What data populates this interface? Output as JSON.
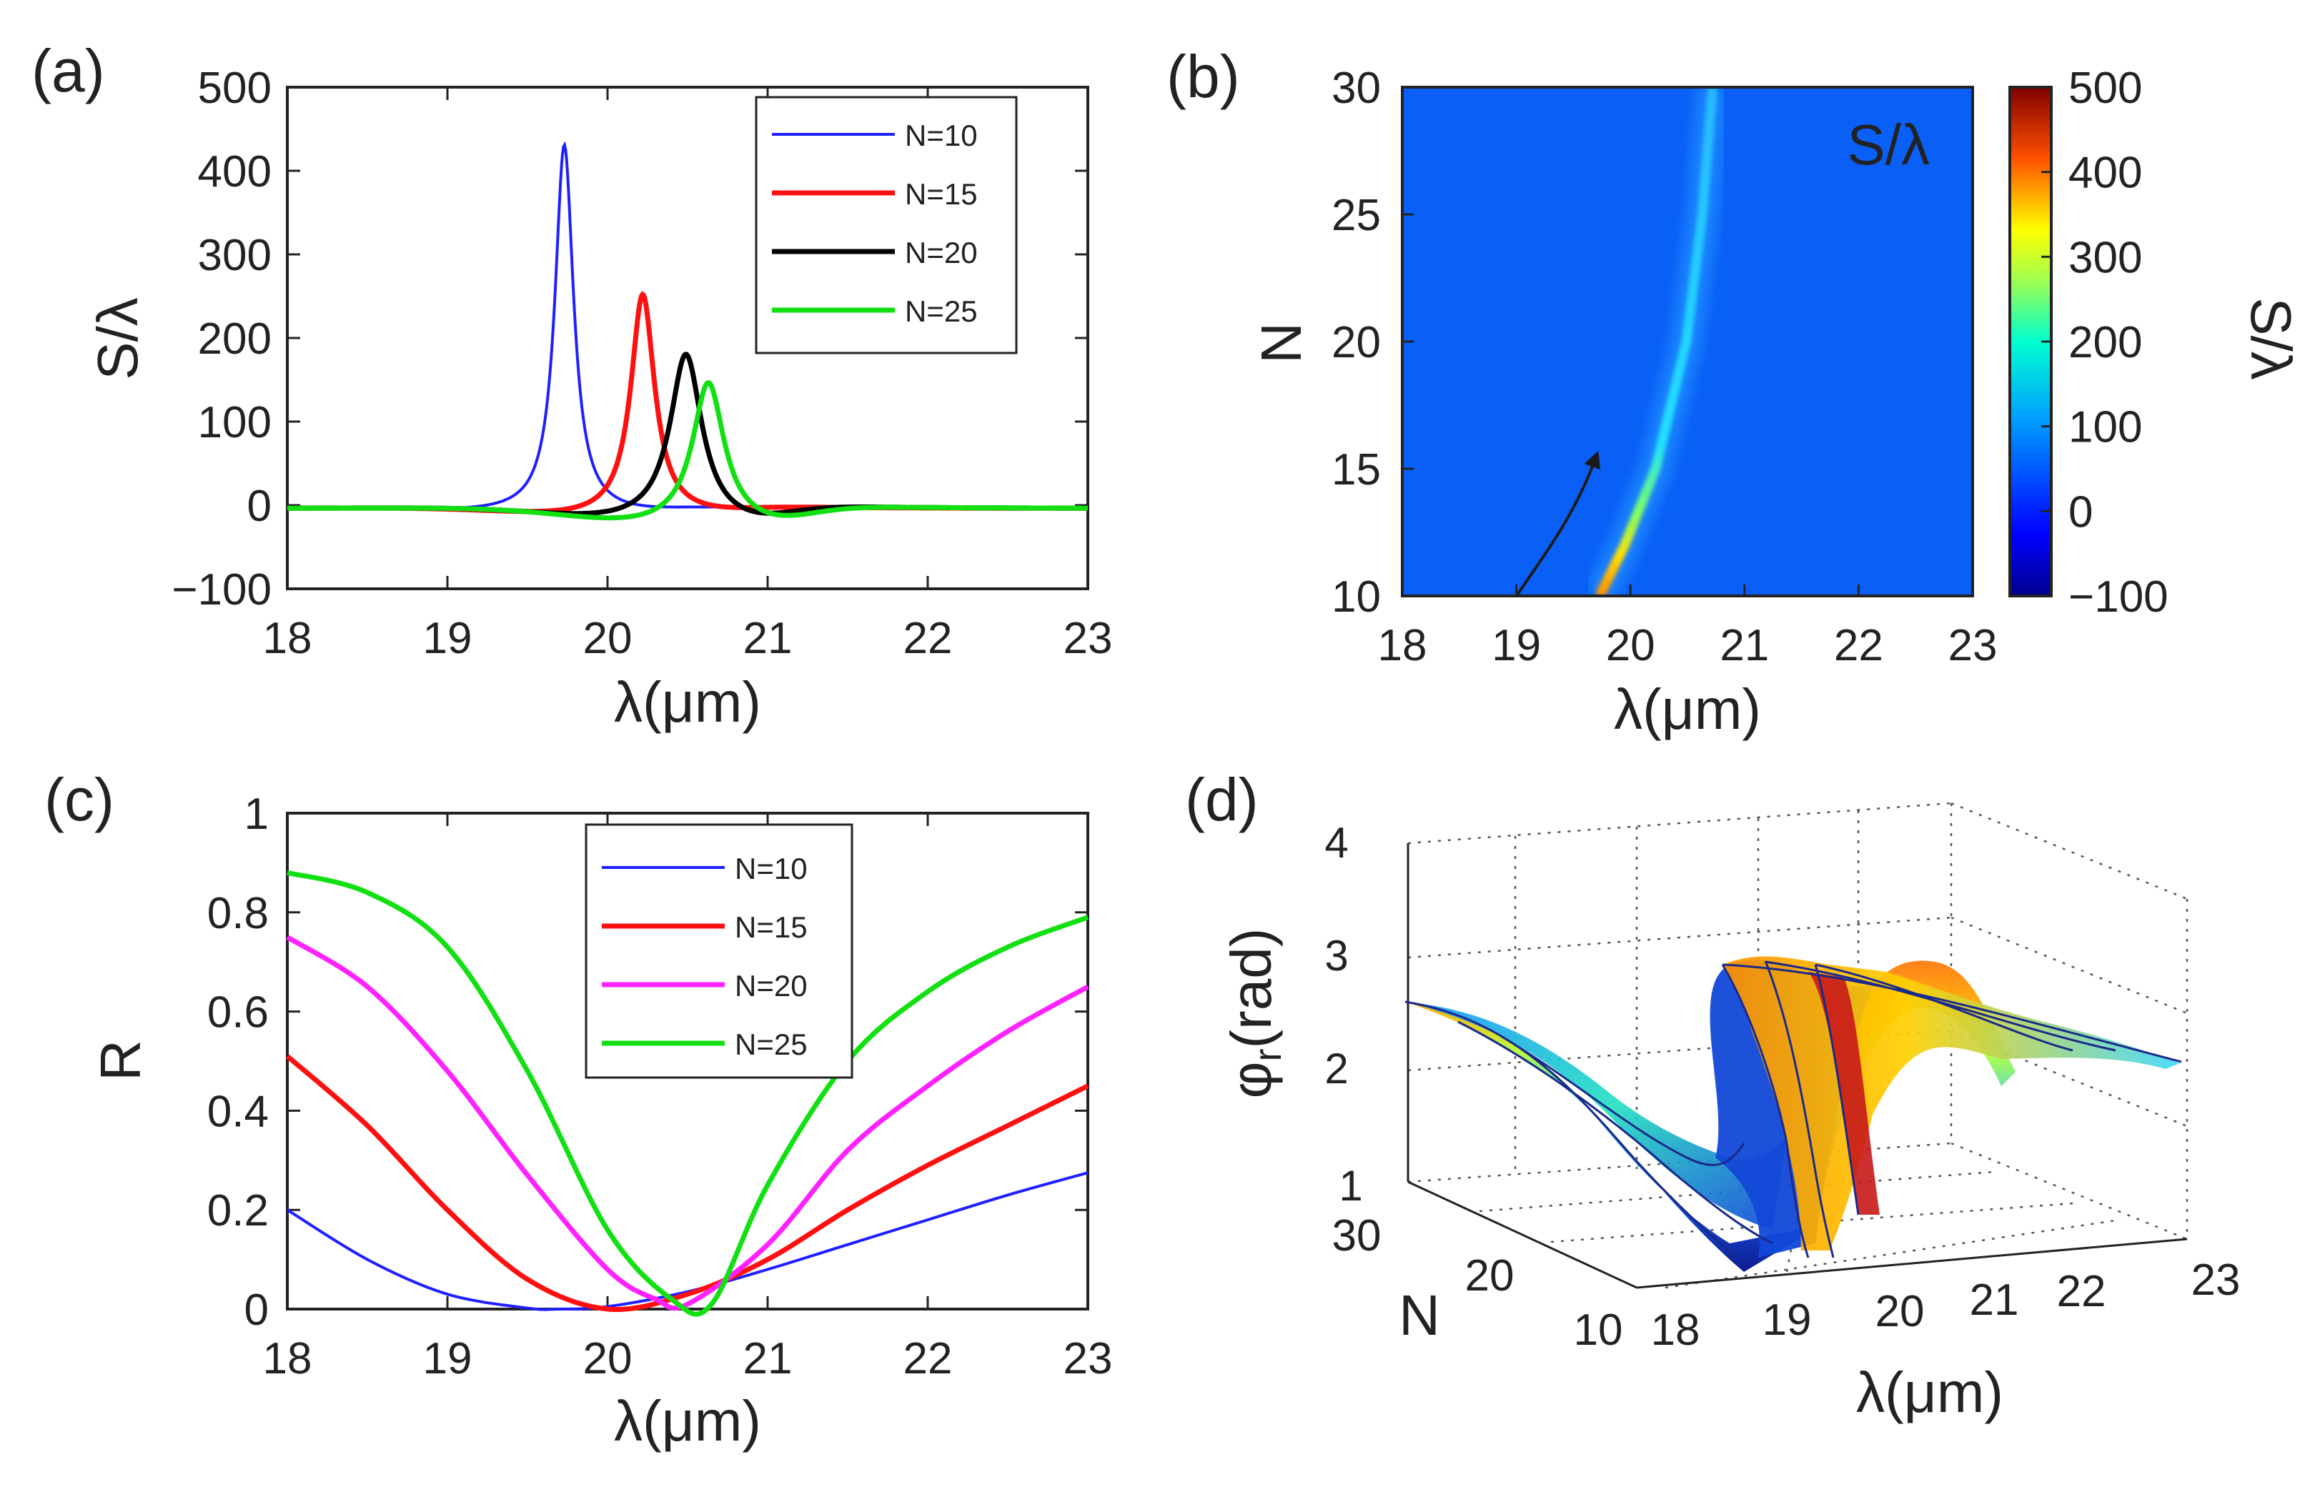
{
  "chart_data": [
    {
      "id": "a",
      "type": "line",
      "panel_label": "(a)",
      "xlabel": "λ(μm)",
      "ylabel": "S/λ",
      "xlim": [
        18,
        23
      ],
      "ylim": [
        -100,
        500
      ],
      "xticks": [
        "18",
        "19",
        "20",
        "21",
        "22",
        "23"
      ],
      "yticks": [
        "−100",
        "0",
        "100",
        "200",
        "300",
        "400",
        "500"
      ],
      "legend_position": "top-right",
      "series": [
        {
          "name": "N=10",
          "color": "#1f1fff",
          "peak_x": 19.73,
          "peak_y": 440,
          "width": 0.07
        },
        {
          "name": "N=15",
          "color": "#ff1010",
          "peak_x": 20.22,
          "peak_y": 265,
          "width": 0.09
        },
        {
          "name": "N=20",
          "color": "#000000",
          "peak_x": 20.49,
          "peak_y": 200,
          "width": 0.12
        },
        {
          "name": "N=25",
          "color": "#12e012",
          "peak_x": 20.63,
          "peak_y": 170,
          "width": 0.12
        }
      ]
    },
    {
      "id": "b",
      "type": "heatmap",
      "panel_label": "(b)",
      "xlabel": "λ(μm)",
      "ylabel": "N",
      "annotation": "S/λ",
      "colorbar_label": "S/λ",
      "xlim": [
        18,
        23
      ],
      "ylim": [
        10,
        30
      ],
      "clim": [
        -100,
        500
      ],
      "xticks": [
        "18",
        "19",
        "20",
        "21",
        "22",
        "23"
      ],
      "yticks": [
        "10",
        "15",
        "20",
        "25",
        "30"
      ],
      "cticks": [
        "−100",
        "0",
        "100",
        "200",
        "300",
        "400",
        "500"
      ],
      "ridge": [
        {
          "N": 10,
          "x": 19.73,
          "value": 440
        },
        {
          "N": 12,
          "x": 19.95,
          "value": 330
        },
        {
          "N": 15,
          "x": 20.22,
          "value": 265
        },
        {
          "N": 20,
          "x": 20.49,
          "value": 200
        },
        {
          "N": 25,
          "x": 20.63,
          "value": 170
        },
        {
          "N": 30,
          "x": 20.72,
          "value": 150
        }
      ]
    },
    {
      "id": "c",
      "type": "line",
      "panel_label": "(c)",
      "xlabel": "λ(μm)",
      "ylabel": "R",
      "xlim": [
        18,
        23
      ],
      "ylim": [
        0,
        1
      ],
      "xticks": [
        "18",
        "19",
        "20",
        "21",
        "22",
        "23"
      ],
      "yticks": [
        "0",
        "0.2",
        "0.4",
        "0.6",
        "0.8",
        "1"
      ],
      "legend_position": "top-center",
      "series": [
        {
          "name": "N=10",
          "color": "#1f1fff",
          "x": [
            18,
            18.5,
            19,
            19.5,
            19.7,
            20,
            20.5,
            21,
            21.5,
            22,
            22.5,
            23
          ],
          "y": [
            0.2,
            0.1,
            0.03,
            0.002,
            0,
            0.005,
            0.035,
            0.08,
            0.13,
            0.18,
            0.23,
            0.275
          ]
        },
        {
          "name": "N=15",
          "color": "#ff1010",
          "x": [
            18,
            18.5,
            19,
            19.5,
            20,
            20.5,
            21,
            21.5,
            22,
            22.5,
            23
          ],
          "y": [
            0.51,
            0.37,
            0.2,
            0.06,
            0,
            0.03,
            0.1,
            0.2,
            0.29,
            0.37,
            0.45
          ]
        },
        {
          "name": "N=20",
          "color": "#ff22ff",
          "x": [
            18,
            18.5,
            19,
            19.5,
            20,
            20.3,
            20.5,
            21,
            21.5,
            22,
            22.5,
            23
          ],
          "y": [
            0.75,
            0.65,
            0.48,
            0.27,
            0.08,
            0.02,
            0.01,
            0.13,
            0.32,
            0.45,
            0.56,
            0.65
          ]
        },
        {
          "name": "N=25",
          "color": "#12e012",
          "x": [
            18,
            18.5,
            19,
            19.5,
            20,
            20.4,
            20.65,
            21,
            21.5,
            22,
            22.5,
            23
          ],
          "y": [
            0.88,
            0.84,
            0.73,
            0.48,
            0.16,
            0.02,
            0.01,
            0.25,
            0.5,
            0.64,
            0.73,
            0.79
          ]
        }
      ]
    },
    {
      "id": "d",
      "type": "surface",
      "panel_label": "(d)",
      "xlabel": "λ(μm)",
      "ylabel": "N",
      "zlabel_base": "φ",
      "zlabel_sub": "r",
      "zlabel_unit": "(rad)",
      "xticks": [
        "18",
        "19",
        "20",
        "21",
        "22",
        "23"
      ],
      "yticks": [
        "10",
        "20",
        "30"
      ],
      "zticks": [
        "1",
        "2",
        "3",
        "4"
      ]
    }
  ]
}
